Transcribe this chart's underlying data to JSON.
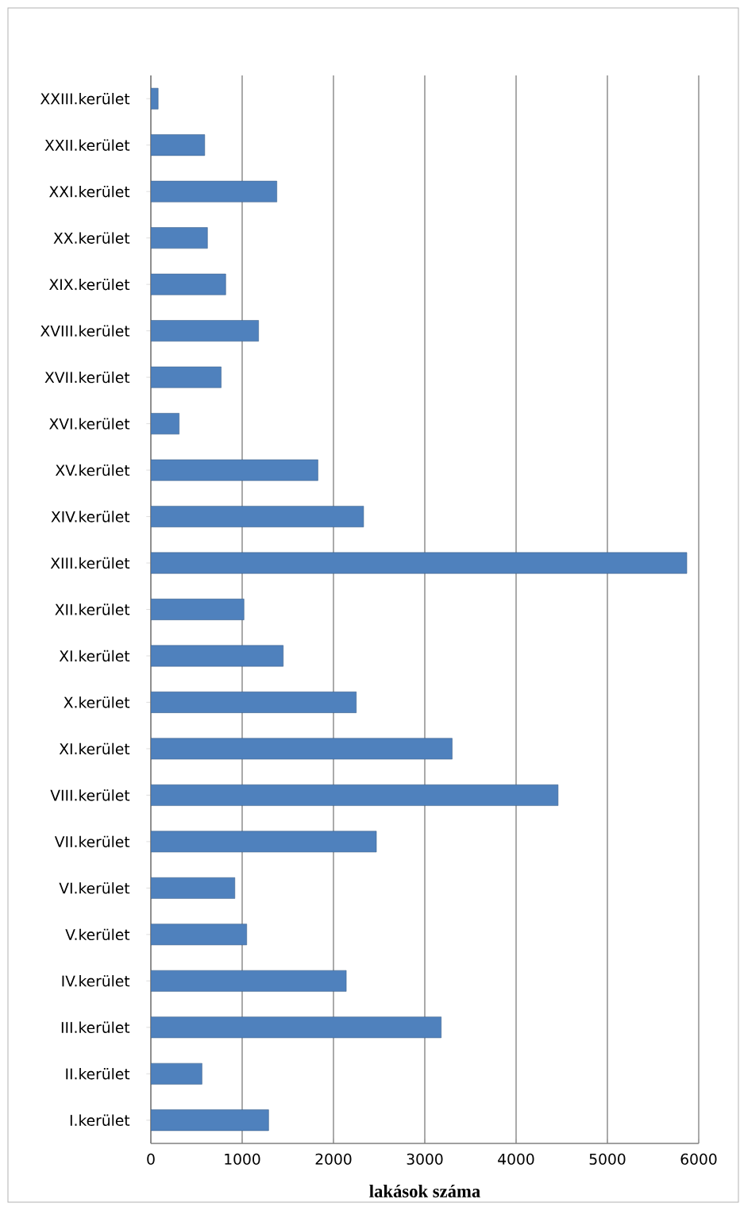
{
  "chart_data": {
    "type": "bar",
    "orientation": "horizontal",
    "categories": [
      "XXIII.kerület",
      "XXII.kerület",
      "XXI.kerület",
      "XX.kerület",
      "XIX.kerület",
      "XVIII.kerület",
      "XVII.kerület",
      "XVI.kerület",
      "XV.kerület",
      "XIV.kerület",
      "XIII.kerület",
      "XII.kerület",
      "XI.kerület",
      "X.kerület",
      "XI.kerület",
      "VIII.kerület",
      "VII.kerület",
      "VI.kerület",
      "V.kerület",
      "IV.kerület",
      "III.kerület",
      "II.kerület",
      "I.kerület"
    ],
    "values": [
      80,
      590,
      1380,
      620,
      820,
      1180,
      770,
      310,
      1830,
      2330,
      5870,
      1020,
      1450,
      2250,
      3300,
      4460,
      2470,
      920,
      1050,
      2140,
      3180,
      560,
      1290
    ],
    "color": "#4f81bd",
    "xlim": [
      0,
      6000
    ],
    "xticks": [
      0,
      1000,
      2000,
      3000,
      4000,
      5000,
      6000
    ],
    "grid": "x",
    "xlabel": "lakások száma"
  }
}
